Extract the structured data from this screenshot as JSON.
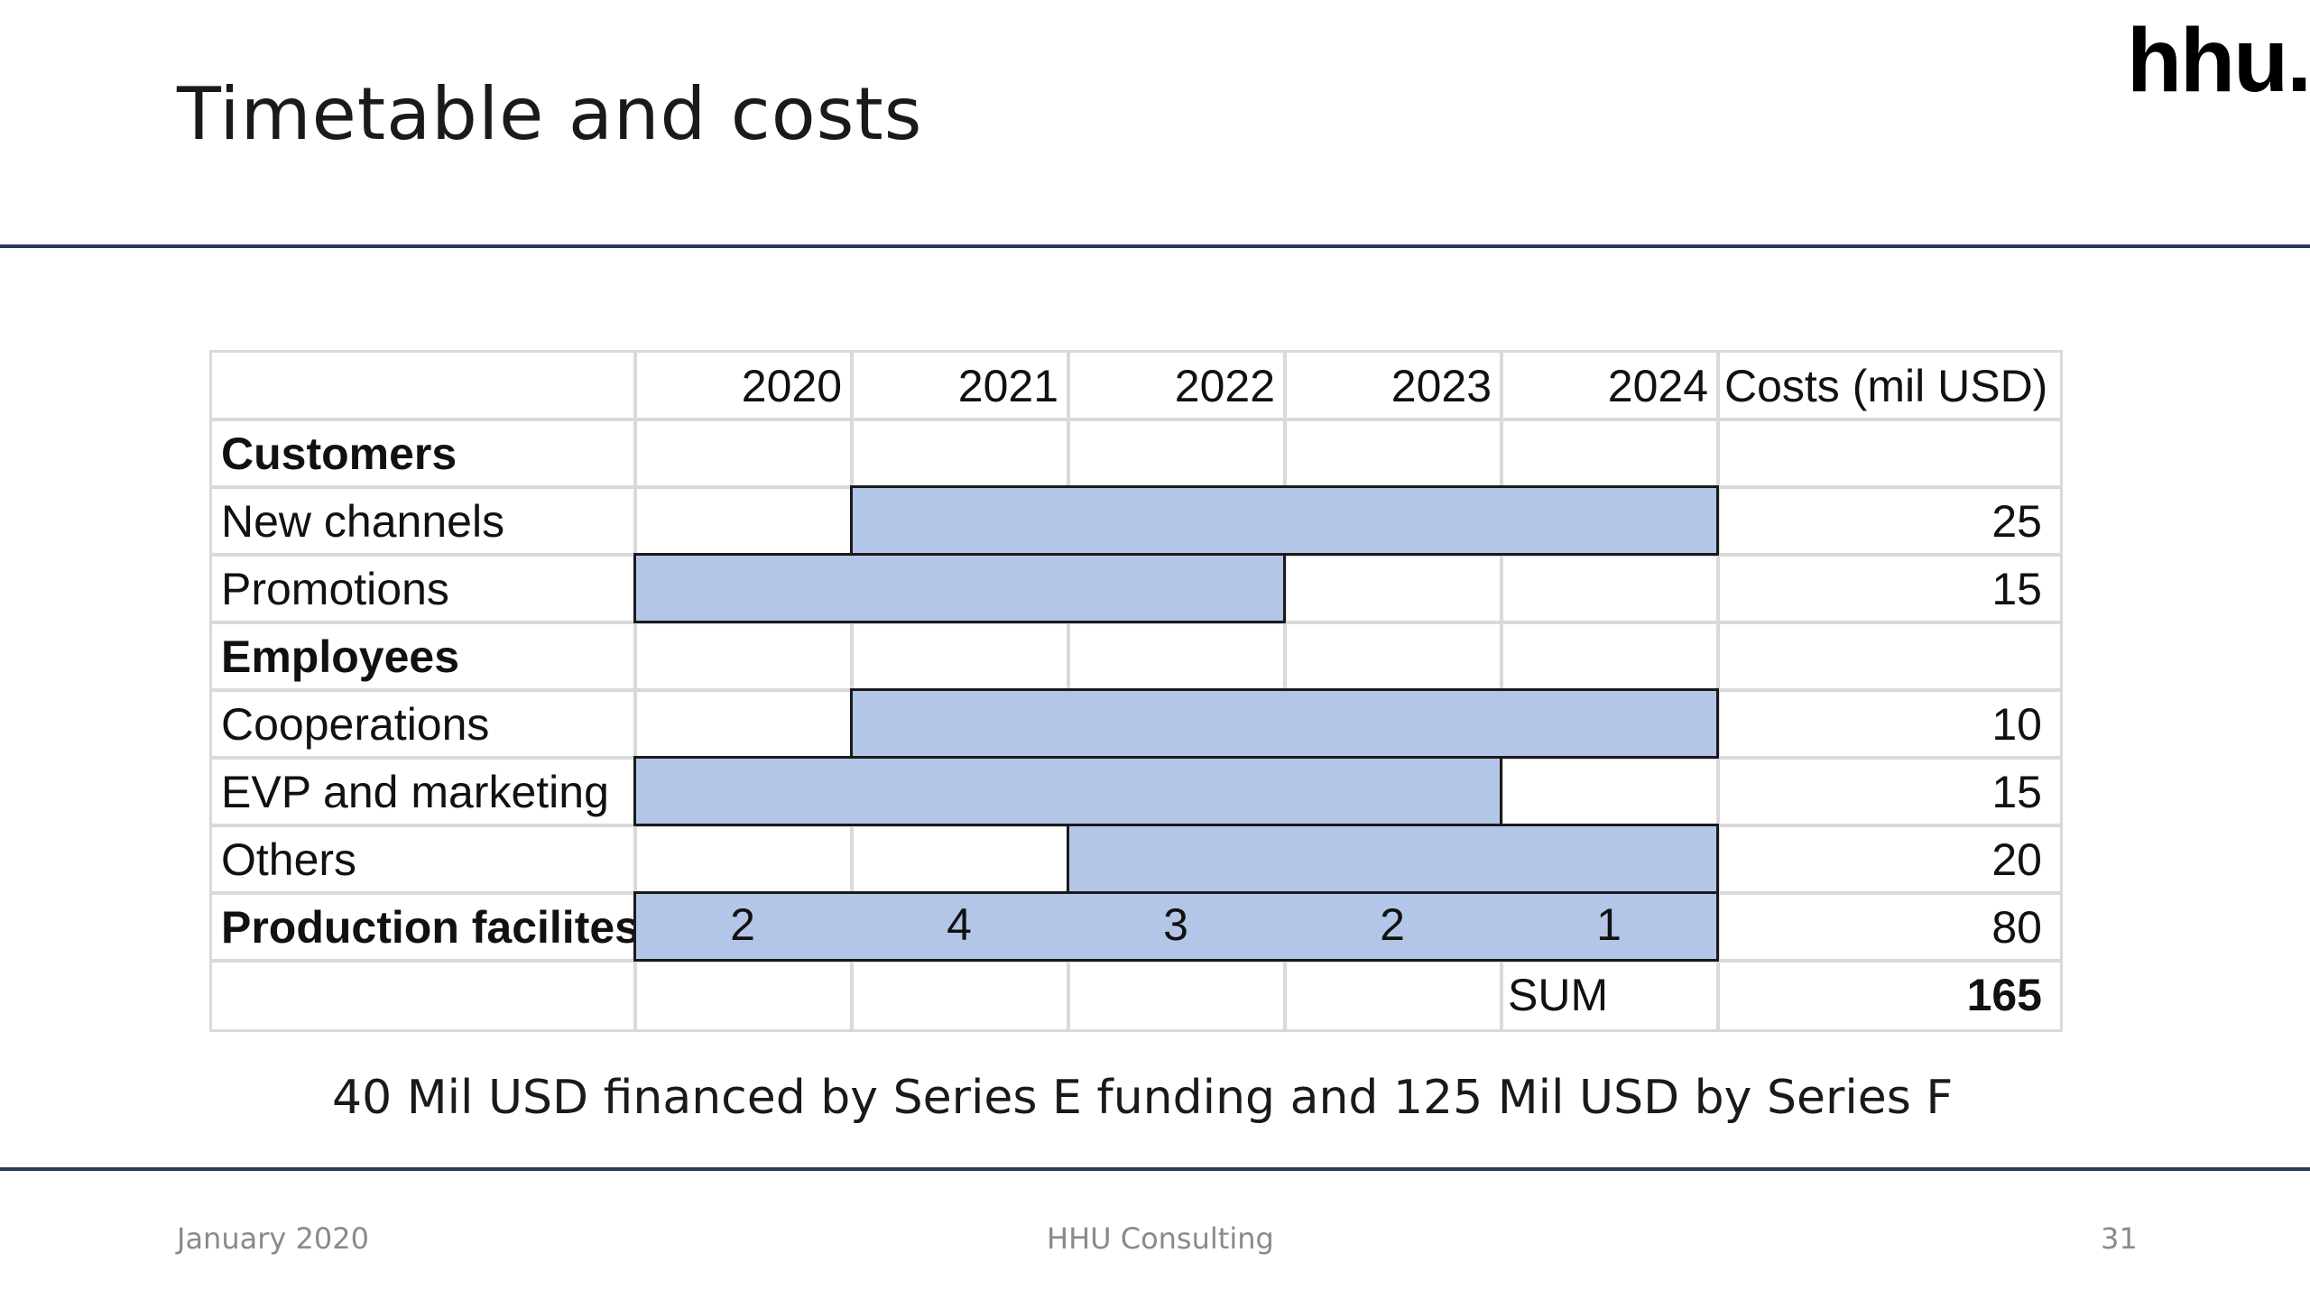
{
  "slide": {
    "title": "Timetable and costs",
    "logo_text": "hhu."
  },
  "gantt": {
    "years": [
      "2020",
      "2021",
      "2022",
      "2023",
      "2024"
    ],
    "costs_header": "Costs (mil USD)",
    "rows": [
      {
        "label": "Customers",
        "bold": true,
        "cost": "",
        "bar": null
      },
      {
        "label": "New channels",
        "bold": false,
        "cost": "25",
        "bar": {
          "start_year": "2021",
          "end_year": "2024"
        }
      },
      {
        "label": "Promotions",
        "bold": false,
        "cost": "15",
        "bar": {
          "start_year": "2020",
          "end_year": "2022"
        }
      },
      {
        "label": "Employees",
        "bold": true,
        "cost": "",
        "bar": null
      },
      {
        "label": "Cooperations",
        "bold": false,
        "cost": "10",
        "bar": {
          "start_year": "2021",
          "end_year": "2024"
        }
      },
      {
        "label": "EVP and marketing",
        "bold": false,
        "cost": "15",
        "bar": {
          "start_year": "2020",
          "end_year": "2023"
        }
      },
      {
        "label": "Others",
        "bold": false,
        "cost": "20",
        "bar": {
          "start_year": "2022",
          "end_year": "2024"
        }
      },
      {
        "label": "Production facilites",
        "bold": true,
        "cost": "80",
        "bar": {
          "start_year": "2020",
          "end_year": "2024",
          "yearly_values": [
            "2",
            "4",
            "3",
            "2",
            "1"
          ]
        }
      }
    ],
    "sum_label": "SUM",
    "sum_value": "165",
    "bar_color": "#b4c6e7"
  },
  "financing_note": "40 Mil USD financed by Series E funding and 125 Mil USD by Series F",
  "footer": {
    "date": "January 2020",
    "company": "HHU Consulting",
    "page_number": "31"
  }
}
